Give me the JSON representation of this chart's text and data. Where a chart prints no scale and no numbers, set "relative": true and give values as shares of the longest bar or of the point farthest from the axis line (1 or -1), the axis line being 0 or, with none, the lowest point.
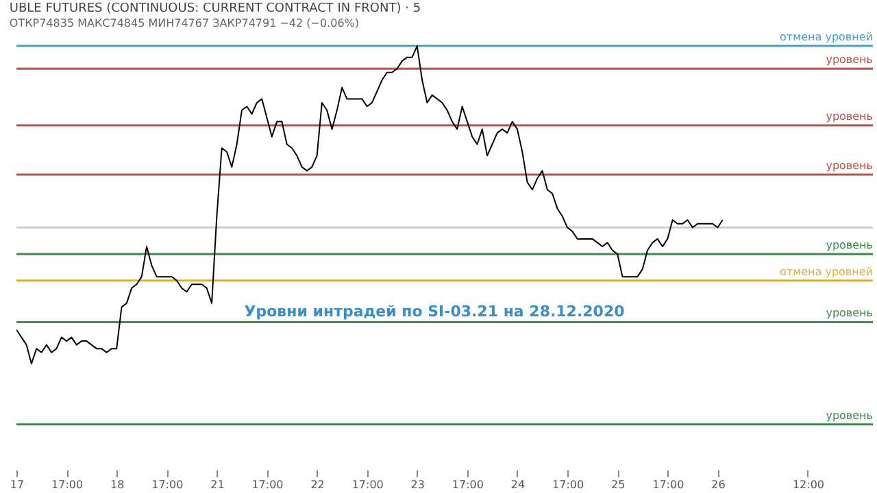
{
  "chart_data": {
    "type": "line",
    "relative": true,
    "title": "UBLE FUTURES (CONTINUOUS: CURRENT CONTRACT IN FRONT) · 5",
    "subtitle": "ОТКР74835 МАКС74845 МИН74767 ЗАКР74791 −42 (−0.06%)",
    "annotations": [
      "Уровни интрадей по SI-03.21 на 28.12.2020"
    ],
    "categories": [
      "17",
      null,
      null,
      null,
      null,
      null,
      null,
      null,
      null,
      null,
      "17:00",
      null,
      null,
      null,
      null,
      null,
      null,
      null,
      null,
      null,
      "18",
      null,
      null,
      null,
      null,
      null,
      null,
      null,
      null,
      null,
      "17:00",
      null,
      null,
      null,
      null,
      null,
      null,
      null,
      null,
      null,
      "21",
      null,
      null,
      null,
      null,
      null,
      null,
      null,
      null,
      null,
      "17:00",
      null,
      null,
      null,
      null,
      null,
      null,
      null,
      null,
      null,
      "22",
      null,
      null,
      null,
      null,
      null,
      null,
      null,
      null,
      null,
      "17:00",
      null,
      null,
      null,
      null,
      null,
      null,
      null,
      null,
      null,
      "23",
      null,
      null,
      null,
      null,
      null,
      null,
      null,
      null,
      null,
      "17:00",
      null,
      null,
      null,
      null,
      null,
      null,
      null,
      null,
      null,
      "24",
      null,
      null,
      null,
      null,
      null,
      null,
      null,
      null,
      null,
      "17:00",
      null,
      null,
      null,
      null,
      null,
      null,
      null,
      null,
      null,
      "25",
      null,
      null,
      null,
      null,
      null,
      null,
      null,
      null,
      null,
      "17:00",
      null,
      null,
      null,
      null,
      null,
      null,
      null,
      null,
      null,
      "26",
      null,
      null,
      null,
      null,
      null,
      null,
      null,
      null,
      null,
      null,
      null,
      null,
      null,
      null,
      null,
      null,
      null,
      "12:00",
      null,
      null,
      null,
      null,
      null,
      null,
      null,
      null,
      null,
      null,
      null,
      null,
      null
    ],
    "series": [
      {
        "color": "#000000",
        "values": [
          0.25,
          0.23,
          0.21,
          0.16,
          0.2,
          0.19,
          0.21,
          0.19,
          0.2,
          0.23,
          0.22,
          0.23,
          0.21,
          0.22,
          0.22,
          0.21,
          0.2,
          0.2,
          0.19,
          0.2,
          0.2,
          0.31,
          0.32,
          0.36,
          0.37,
          0.39,
          0.47,
          0.42,
          0.39,
          0.39,
          0.39,
          0.39,
          0.38,
          0.36,
          0.35,
          0.37,
          0.37,
          0.37,
          0.36,
          0.32,
          0.55,
          0.73,
          0.72,
          0.68,
          0.74,
          0.83,
          0.84,
          0.82,
          0.85,
          0.86,
          0.81,
          0.76,
          0.8,
          0.8,
          0.74,
          0.73,
          0.71,
          0.68,
          0.67,
          0.68,
          0.71,
          0.85,
          0.83,
          0.78,
          0.83,
          0.89,
          0.86,
          0.86,
          0.86,
          0.86,
          0.84,
          0.85,
          0.88,
          0.91,
          0.93,
          0.93,
          0.94,
          0.96,
          0.97,
          0.97,
          1,
          0.91,
          0.85,
          0.87,
          0.86,
          0.85,
          0.83,
          0.8,
          0.78,
          0.84,
          0.8,
          0.76,
          0.74,
          0.78,
          0.71,
          0.74,
          0.77,
          0.78,
          0.77,
          0.8,
          0.78,
          0.72,
          0.64,
          0.62,
          0.65,
          0.67,
          0.62,
          0.61,
          0.57,
          0.55,
          0.52,
          0.51,
          0.49,
          0.49,
          0.49,
          0.49,
          0.48,
          0.47,
          0.48,
          0.46,
          0.45,
          0.39,
          0.39,
          0.39,
          0.39,
          0.41,
          0.46,
          0.48,
          0.49,
          0.47,
          0.49,
          0.54,
          0.53,
          0.53,
          0.54,
          0.52,
          0.53,
          0.53,
          0.53,
          0.53,
          0.52,
          0.54,
          null,
          null,
          null,
          null,
          null,
          null,
          null,
          null,
          null,
          null,
          null,
          null,
          null,
          null,
          null,
          null,
          null,
          null,
          null,
          null,
          null,
          null,
          null,
          null,
          null,
          null,
          null,
          null,
          null,
          null
        ]
      }
    ],
    "ref_lines": [
      {
        "axis": "y",
        "value": 1,
        "label": "отмена уровней",
        "color": "#4a9fc0"
      },
      {
        "axis": "y",
        "value": 0.94,
        "label": "уровень",
        "color": "#b5524a"
      },
      {
        "axis": "y",
        "value": 0.79,
        "label": "уровень",
        "color": "#b5524a"
      },
      {
        "axis": "y",
        "value": 0.66,
        "label": "уровень",
        "color": "#b5524a"
      },
      {
        "axis": "y",
        "value": 0.52,
        "label": null,
        "color": "#cccccc"
      },
      {
        "axis": "y",
        "value": 0.45,
        "label": "уровень",
        "color": "#3d8c4a"
      },
      {
        "axis": "y",
        "value": 0.38,
        "label": "отмена уровней",
        "color": "#e0b030"
      },
      {
        "axis": "y",
        "value": 0.27,
        "label": "уровень",
        "color": "#3d8c4a"
      },
      {
        "axis": "y",
        "value": 0,
        "label": "уровень",
        "color": "#3d8c4a"
      }
    ]
  }
}
